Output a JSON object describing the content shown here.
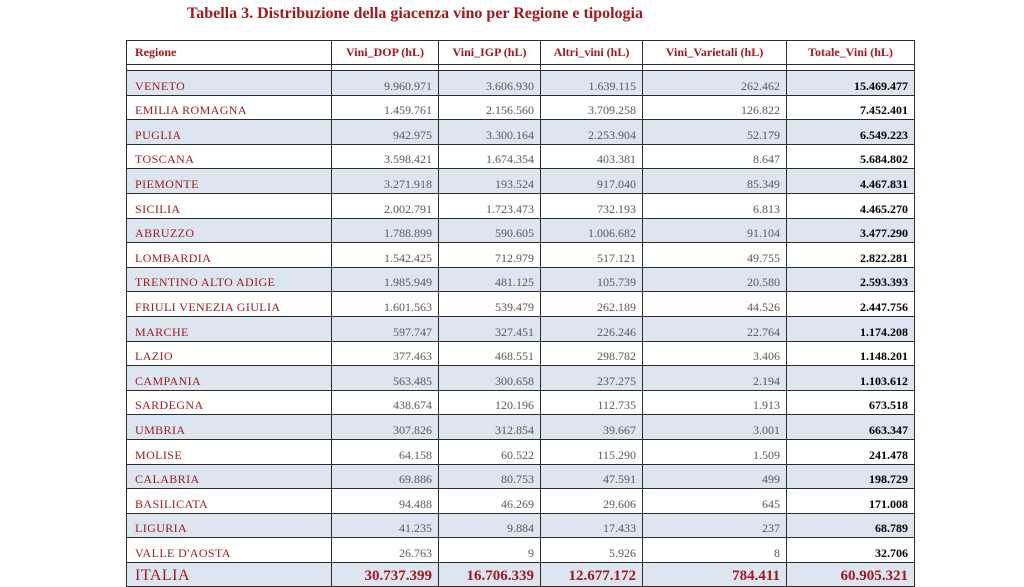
{
  "title": "Tabella 3. Distribuzione della giacenza vino per Regione e tipologia",
  "headers": [
    "Regione",
    "Vini_DOP (hL)",
    "Vini_IGP (hL)",
    "Altri_vini (hL)",
    "Vini_Varietali (hL)",
    "Totale_Vini (hL)"
  ],
  "rows": [
    [
      "VENETO",
      "9.960.971",
      "3.606.930",
      "1.639.115",
      "262.462",
      "15.469.477"
    ],
    [
      "EMILIA ROMAGNA",
      "1.459.761",
      "2.156.560",
      "3.709.258",
      "126.822",
      "7.452.401"
    ],
    [
      "PUGLIA",
      "942.975",
      "3.300.164",
      "2.253.904",
      "52.179",
      "6.549.223"
    ],
    [
      "TOSCANA",
      "3.598.421",
      "1.674.354",
      "403.381",
      "8.647",
      "5.684.802"
    ],
    [
      "PIEMONTE",
      "3.271.918",
      "193.524",
      "917.040",
      "85.349",
      "4.467.831"
    ],
    [
      "SICILIA",
      "2.002.791",
      "1.723.473",
      "732.193",
      "6.813",
      "4.465.270"
    ],
    [
      "ABRUZZO",
      "1.788.899",
      "590.605",
      "1.006.682",
      "91.104",
      "3.477.290"
    ],
    [
      "LOMBARDIA",
      "1.542.425",
      "712.979",
      "517.121",
      "49.755",
      "2.822.281"
    ],
    [
      "TRENTINO ALTO ADIGE",
      "1.985.949",
      "481.125",
      "105.739",
      "20.580",
      "2.593.393"
    ],
    [
      "FRIULI VENEZIA GIULIA",
      "1.601.563",
      "539.479",
      "262.189",
      "44.526",
      "2.447.756"
    ],
    [
      "MARCHE",
      "597.747",
      "327.451",
      "226.246",
      "22.764",
      "1.174.208"
    ],
    [
      "LAZIO",
      "377.463",
      "468.551",
      "298.782",
      "3.406",
      "1.148.201"
    ],
    [
      "CAMPANIA",
      "563.485",
      "300.658",
      "237.275",
      "2.194",
      "1.103.612"
    ],
    [
      "SARDEGNA",
      "438.674",
      "120.196",
      "112.735",
      "1.913",
      "673.518"
    ],
    [
      "UMBRIA",
      "307.826",
      "312.854",
      "39.667",
      "3.001",
      "663.347"
    ],
    [
      "MOLISE",
      "64.158",
      "60.522",
      "115.290",
      "1.509",
      "241.478"
    ],
    [
      "CALABRIA",
      "69.886",
      "80.753",
      "47.591",
      "499",
      "198.729"
    ],
    [
      "BASILICATA",
      "94.488",
      "46.269",
      "29.606",
      "645",
      "171.008"
    ],
    [
      "LIGURIA",
      "41.235",
      "9.884",
      "17.433",
      "237",
      "68.789"
    ],
    [
      "VALLE D'AOSTA",
      "26.763",
      "9",
      "5.926",
      "8",
      "32.706"
    ]
  ],
  "total": [
    "ITALIA",
    "30.737.399",
    "16.706.339",
    "12.677.172",
    "784.411",
    "60.905.321"
  ],
  "colors": {
    "title": "#a0191c",
    "region_text": "#a0191c",
    "alt_row_bg": "#dde6f0",
    "number_text": "#595959",
    "border": "#2c2c2c"
  }
}
